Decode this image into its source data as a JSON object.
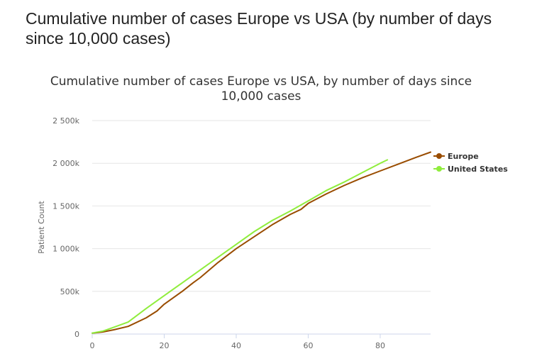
{
  "page": {
    "heading": "Cumulative number of cases Europe vs USA (by number of days since 10,000 cases)"
  },
  "chart_data": {
    "type": "line",
    "title": "Cumulative number of cases Europe vs USA, by number of days since 10,000 cases",
    "title_lines": [
      "Cumulative number of cases Europe vs USA, by number of days since",
      "10,000 cases"
    ],
    "xlabel": "",
    "ylabel": "Patient Count",
    "xlim": [
      0,
      94
    ],
    "ylim": [
      0,
      2500000
    ],
    "x_ticks": [
      0,
      20,
      40,
      60,
      80
    ],
    "y_ticks": [
      {
        "value": 0,
        "label": "0"
      },
      {
        "value": 500000,
        "label": "500k"
      },
      {
        "value": 1000000,
        "label": "1 000k"
      },
      {
        "value": 1500000,
        "label": "1 500k"
      },
      {
        "value": 2000000,
        "label": "2 000k"
      },
      {
        "value": 2500000,
        "label": "2 500k"
      }
    ],
    "grid": "horizontal",
    "legend_position": "right",
    "series": [
      {
        "name": "Europe",
        "color": "#994c00",
        "x": [
          0,
          3,
          6,
          10,
          15,
          18,
          20,
          25,
          28,
          30,
          35,
          40,
          45,
          50,
          55,
          58,
          60,
          65,
          70,
          75,
          80,
          85,
          90,
          94
        ],
        "y": [
          10000,
          25000,
          50000,
          90000,
          190000,
          270000,
          350000,
          500000,
          600000,
          660000,
          840000,
          1000000,
          1140000,
          1280000,
          1400000,
          1460000,
          1530000,
          1640000,
          1740000,
          1830000,
          1910000,
          1990000,
          2070000,
          2130000
        ]
      },
      {
        "name": "United States",
        "color": "#90ed3d",
        "x": [
          0,
          3,
          6,
          10,
          15,
          20,
          25,
          30,
          35,
          40,
          45,
          50,
          55,
          60,
          65,
          70,
          75,
          80,
          82
        ],
        "y": [
          12000,
          35000,
          80000,
          140000,
          300000,
          450000,
          600000,
          750000,
          900000,
          1050000,
          1200000,
          1330000,
          1440000,
          1560000,
          1680000,
          1780000,
          1890000,
          2000000,
          2040000
        ]
      }
    ]
  }
}
